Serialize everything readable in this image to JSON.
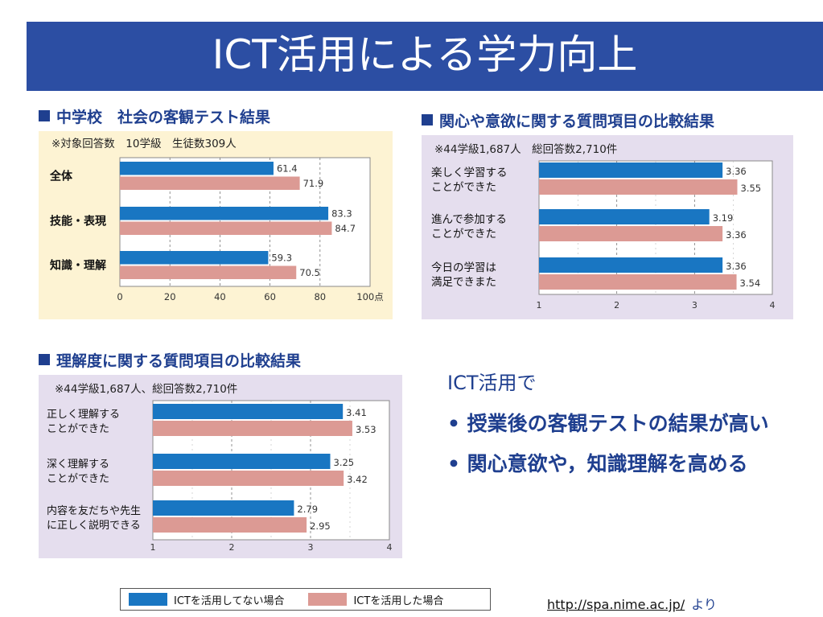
{
  "slide": {
    "title": "ICT活用による学力向上"
  },
  "colors": {
    "title_bg": "#2c4ea3",
    "without_ict": "#1976c2",
    "with_ict": "#dc9a94",
    "panel1_bg": "#fdf3d3",
    "panel_bg": "#e5deee",
    "heading": "#1f3f8f"
  },
  "chart_data": [
    {
      "type": "bar",
      "orientation": "horizontal",
      "title": "中学校　社会の客観テスト結果",
      "note": "※対象回答数　10学級　生徒数309人",
      "categories": [
        "全体",
        "技能・表現",
        "知識・理解"
      ],
      "series": [
        {
          "name": "ICTを活用してない場合",
          "values": [
            61.4,
            83.3,
            59.3
          ],
          "labels": [
            "61.4",
            "83.3",
            "59.3"
          ]
        },
        {
          "name": "ICTを活用した場合",
          "values": [
            71.9,
            84.7,
            70.5
          ],
          "labels": [
            "71.9",
            "84.7",
            "70.5"
          ]
        }
      ],
      "xlim": [
        0,
        100
      ],
      "xticks": [
        "0",
        "20",
        "40",
        "60",
        "80",
        "100点"
      ],
      "grid": "dashed-vertical"
    },
    {
      "type": "bar",
      "orientation": "horizontal",
      "title": "関心や意欲に関する質問項目の比較結果",
      "note": "※44学級1,687人　総回答数2,710件",
      "categories": [
        [
          "楽しく学習する",
          "ことができた"
        ],
        [
          "進んで参加する",
          "ことができた"
        ],
        [
          "今日の学習は",
          "満足できまた"
        ]
      ],
      "series": [
        {
          "name": "ICTを活用してない場合",
          "values": [
            3.36,
            3.19,
            3.36
          ],
          "labels": [
            "3.36",
            "3.19",
            "3.36"
          ]
        },
        {
          "name": "ICTを活用した場合",
          "values": [
            3.55,
            3.36,
            3.54
          ],
          "labels": [
            "3.55",
            "3.36",
            "3.54"
          ]
        }
      ],
      "xlim": [
        1,
        4
      ],
      "xticks": [
        "1",
        "2",
        "3",
        "4"
      ],
      "grid": "dashed-vertical"
    },
    {
      "type": "bar",
      "orientation": "horizontal",
      "title": "理解度に関する質問項目の比較結果",
      "note": "※44学級1,687人、総回答数2,710件",
      "categories": [
        [
          "正しく理解する",
          "ことができた"
        ],
        [
          "深く理解する",
          "ことができた"
        ],
        [
          "内容を友だちや先生",
          "に正しく説明できる"
        ]
      ],
      "series": [
        {
          "name": "ICTを活用してない場合",
          "values": [
            3.41,
            3.25,
            2.79
          ],
          "labels": [
            "3.41",
            "3.25",
            "2.79"
          ]
        },
        {
          "name": "ICTを活用した場合",
          "values": [
            3.53,
            3.42,
            2.95
          ],
          "labels": [
            "3.53",
            "3.42",
            "2.95"
          ]
        }
      ],
      "xlim": [
        1,
        4
      ],
      "xticks": [
        "1",
        "2",
        "3",
        "4"
      ],
      "grid": "dashed-vertical"
    }
  ],
  "summary": {
    "intro": "ICT活用で",
    "bullets": [
      "• 授業後の客観テストの結果が高い",
      "• 関心意欲や，知識理解を高める"
    ]
  },
  "legend": {
    "without": "ICTを活用してない場合",
    "with": "ICTを活用した場合"
  },
  "source": {
    "url": "http://spa.nime.ac.jp/",
    "suffix": "より"
  }
}
